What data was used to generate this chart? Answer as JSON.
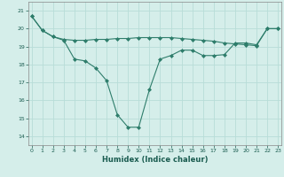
{
  "line1_x": [
    0,
    1,
    2,
    3,
    4,
    5,
    6,
    7,
    8,
    9,
    10,
    11,
    12,
    13,
    14,
    15,
    16,
    17,
    18,
    19,
    20,
    21,
    22,
    23
  ],
  "line1_y": [
    20.7,
    19.9,
    19.55,
    19.4,
    19.35,
    19.35,
    19.4,
    19.4,
    19.45,
    19.45,
    19.5,
    19.5,
    19.5,
    19.5,
    19.45,
    19.4,
    19.35,
    19.3,
    19.2,
    19.15,
    19.1,
    19.05,
    20.0,
    20.0
  ],
  "line2_x": [
    0,
    1,
    2,
    3,
    4,
    5,
    6,
    7,
    8,
    9,
    10,
    11,
    12,
    13,
    14,
    15,
    16,
    17,
    18,
    19,
    20,
    21,
    22,
    23
  ],
  "line2_y": [
    20.7,
    19.9,
    19.55,
    19.35,
    18.3,
    18.2,
    17.8,
    17.1,
    15.2,
    14.5,
    14.5,
    16.6,
    18.3,
    18.5,
    18.8,
    18.8,
    18.5,
    18.5,
    18.55,
    19.2,
    19.2,
    19.1,
    20.0,
    20.0
  ],
  "line_color": "#2e7d6b",
  "bg_color": "#d5eeea",
  "grid_color": "#b8ddd8",
  "xlabel": "Humidex (Indice chaleur)",
  "ylim": [
    13.5,
    21.5
  ],
  "xlim": [
    -0.3,
    23.3
  ],
  "yticks": [
    14,
    15,
    16,
    17,
    18,
    19,
    20,
    21
  ],
  "xticks": [
    0,
    1,
    2,
    3,
    4,
    5,
    6,
    7,
    8,
    9,
    10,
    11,
    12,
    13,
    14,
    15,
    16,
    17,
    18,
    19,
    20,
    21,
    22,
    23
  ],
  "marker": "D",
  "markersize": 2,
  "linewidth": 0.8
}
